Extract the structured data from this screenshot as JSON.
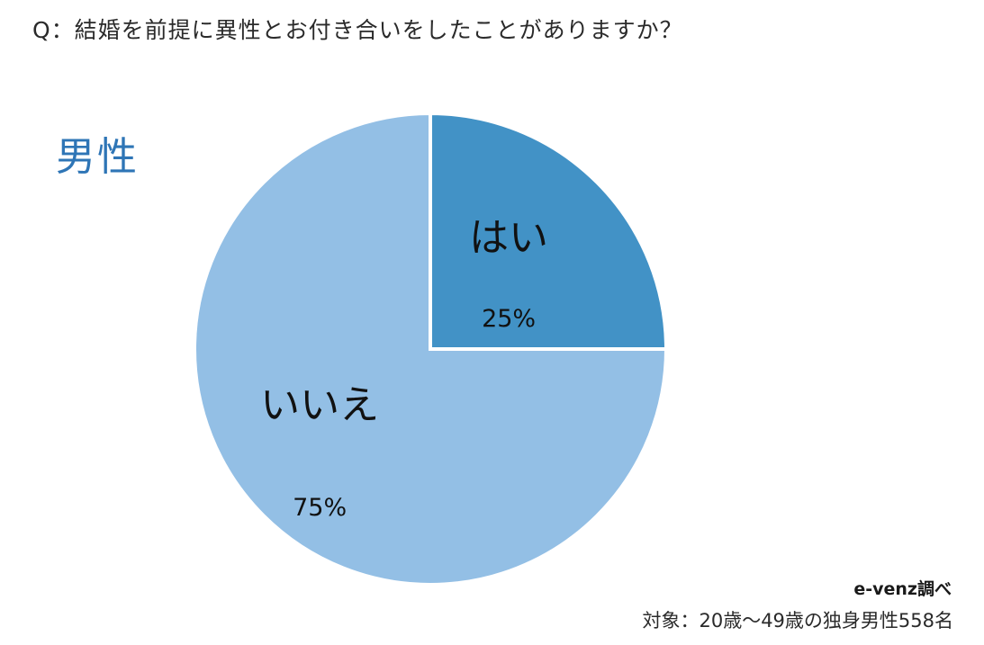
{
  "question": "Q：結婚を前提に異性とお付き合いをしたことがありますか？",
  "subtitle": "男性",
  "chart_data": {
    "type": "pie",
    "slices": [
      {
        "label": "はい",
        "value": 25,
        "value_label": "25%",
        "color": "#4292c6"
      },
      {
        "label": "いいえ",
        "value": 75,
        "value_label": "75%",
        "color": "#93bfe5"
      }
    ]
  },
  "source": "e-venz調べ",
  "target": "対象：20歳～49歳の独身男性558名"
}
